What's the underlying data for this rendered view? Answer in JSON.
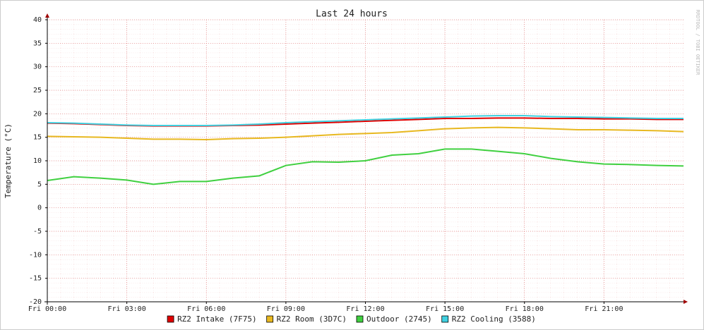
{
  "chart_data": {
    "type": "line",
    "title": "Last 24 hours",
    "y_label": "Temperature (°C)",
    "watermark": "RRDTOOL / TOBI OETIKER",
    "x": [
      0,
      1,
      2,
      3,
      4,
      5,
      6,
      7,
      8,
      9,
      10,
      11,
      12,
      13,
      14,
      15,
      16,
      17,
      18,
      19,
      20,
      21,
      22,
      23,
      24
    ],
    "xlim": [
      0,
      24
    ],
    "xticks": [
      {
        "value": 0,
        "label": "Fri 00:00"
      },
      {
        "value": 3,
        "label": "Fri 03:00"
      },
      {
        "value": 6,
        "label": "Fri 06:00"
      },
      {
        "value": 9,
        "label": "Fri 09:00"
      },
      {
        "value": 12,
        "label": "Fri 12:00"
      },
      {
        "value": 15,
        "label": "Fri 15:00"
      },
      {
        "value": 18,
        "label": "Fri 18:00"
      },
      {
        "value": 21,
        "label": "Fri 21:00"
      }
    ],
    "ylim": [
      -20,
      40
    ],
    "yticks": [
      -20,
      -15,
      -10,
      -5,
      0,
      5,
      10,
      15,
      20,
      25,
      30,
      35,
      40
    ],
    "grid": true,
    "series": [
      {
        "name": "RZ2 Intake (7F75)",
        "color": "#e00000",
        "values": [
          18.0,
          17.9,
          17.7,
          17.5,
          17.4,
          17.4,
          17.4,
          17.5,
          17.6,
          17.8,
          18.0,
          18.2,
          18.4,
          18.6,
          18.8,
          19.0,
          19.0,
          19.1,
          19.1,
          19.0,
          19.0,
          18.9,
          18.9,
          18.8,
          18.8
        ]
      },
      {
        "name": "RZ2 Room (3D7C)",
        "color": "#e8b820",
        "values": [
          15.2,
          15.1,
          15.0,
          14.8,
          14.6,
          14.6,
          14.5,
          14.7,
          14.8,
          15.0,
          15.3,
          15.6,
          15.8,
          16.0,
          16.4,
          16.8,
          17.0,
          17.1,
          17.0,
          16.8,
          16.6,
          16.6,
          16.5,
          16.4,
          16.2
        ]
      },
      {
        "name": "Outdoor (2745)",
        "color": "#40d040",
        "values": [
          5.8,
          6.6,
          6.3,
          5.9,
          5.0,
          5.6,
          5.6,
          6.3,
          6.8,
          9.0,
          9.8,
          9.7,
          10.0,
          11.2,
          11.5,
          12.5,
          12.5,
          12.0,
          11.5,
          10.5,
          9.8,
          9.3,
          9.2,
          9.0,
          8.9
        ]
      },
      {
        "name": "RZ2 Cooling (3588)",
        "color": "#40d0e0",
        "values": [
          18.1,
          18.0,
          17.8,
          17.6,
          17.5,
          17.5,
          17.5,
          17.6,
          17.8,
          18.1,
          18.3,
          18.5,
          18.7,
          18.9,
          19.1,
          19.3,
          19.5,
          19.6,
          19.6,
          19.4,
          19.3,
          19.2,
          19.1,
          19.0,
          19.0
        ]
      }
    ]
  }
}
